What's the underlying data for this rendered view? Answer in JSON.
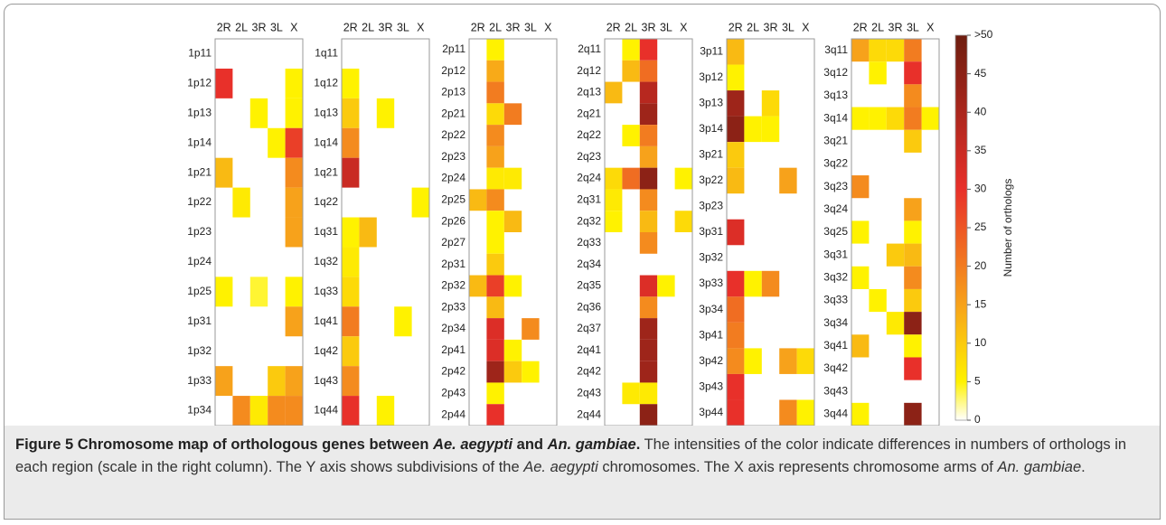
{
  "chart_data": [
    {
      "type": "heatmap",
      "columns": [
        "2R",
        "2L",
        "3R",
        "3L",
        "X"
      ],
      "rows": [
        "1p11",
        "1p12",
        "1p13",
        "1p14",
        "1p21",
        "1p22",
        "1p23",
        "1p24",
        "1p25",
        "1p31",
        "1p32",
        "1p33",
        "1p34"
      ],
      "values": [
        [
          null,
          null,
          null,
          null,
          null
        ],
        [
          30,
          null,
          null,
          null,
          5
        ],
        [
          null,
          null,
          5,
          null,
          5
        ],
        [
          null,
          null,
          null,
          5,
          28
        ],
        [
          12,
          null,
          null,
          null,
          18
        ],
        [
          null,
          6,
          null,
          null,
          15
        ],
        [
          null,
          null,
          null,
          null,
          15
        ],
        [
          null,
          null,
          null,
          null,
          null
        ],
        [
          5,
          null,
          4,
          null,
          5
        ],
        [
          null,
          null,
          null,
          null,
          15
        ],
        [
          null,
          null,
          null,
          null,
          null
        ],
        [
          15,
          null,
          null,
          10,
          15
        ],
        [
          null,
          18,
          6,
          18,
          18
        ]
      ]
    },
    {
      "type": "heatmap",
      "columns": [
        "2R",
        "2L",
        "3R",
        "3L",
        "X"
      ],
      "rows": [
        "1q11",
        "1q12",
        "1q13",
        "1q14",
        "1q21",
        "1q22",
        "1q31",
        "1q32",
        "1q33",
        "1q41",
        "1q42",
        "1q43",
        "1q44"
      ],
      "values": [
        [
          null,
          null,
          null,
          null,
          null
        ],
        [
          5,
          null,
          null,
          null,
          null
        ],
        [
          10,
          null,
          5,
          null,
          null
        ],
        [
          18,
          null,
          null,
          null,
          null
        ],
        [
          35,
          null,
          null,
          null,
          null
        ],
        [
          null,
          null,
          null,
          null,
          5
        ],
        [
          5,
          12,
          null,
          null,
          null
        ],
        [
          6,
          null,
          null,
          null,
          null
        ],
        [
          8,
          null,
          null,
          null,
          null
        ],
        [
          20,
          null,
          null,
          5,
          null
        ],
        [
          10,
          null,
          null,
          null,
          null
        ],
        [
          18,
          null,
          null,
          null,
          null
        ],
        [
          30,
          null,
          5,
          null,
          null
        ]
      ]
    },
    {
      "type": "heatmap",
      "columns": [
        "2R",
        "2L",
        "3R",
        "3L",
        "X"
      ],
      "rows": [
        "2p11",
        "2p12",
        "2p13",
        "2p21",
        "2p22",
        "2p23",
        "2p24",
        "2p25",
        "2p26",
        "2p27",
        "2p31",
        "2p32",
        "2p33",
        "2p34",
        "2p41",
        "2p42",
        "2p43",
        "2p44"
      ],
      "values": [
        [
          null,
          5,
          null,
          null,
          null
        ],
        [
          null,
          14,
          null,
          null,
          null
        ],
        [
          null,
          20,
          null,
          null,
          null
        ],
        [
          null,
          8,
          20,
          null,
          null
        ],
        [
          null,
          18,
          null,
          null,
          null
        ],
        [
          null,
          15,
          null,
          null,
          null
        ],
        [
          null,
          6,
          6,
          null,
          null
        ],
        [
          12,
          18,
          null,
          null,
          null
        ],
        [
          null,
          5,
          12,
          null,
          null
        ],
        [
          null,
          5,
          null,
          null,
          null
        ],
        [
          null,
          10,
          null,
          null,
          null
        ],
        [
          12,
          28,
          5,
          null,
          null
        ],
        [
          null,
          12,
          null,
          null,
          null
        ],
        [
          null,
          32,
          null,
          18,
          null
        ],
        [
          null,
          32,
          5,
          null,
          null
        ],
        [
          null,
          42,
          10,
          5,
          null
        ],
        [
          null,
          5,
          null,
          null,
          null
        ],
        [
          null,
          30,
          null,
          null,
          null
        ]
      ]
    },
    {
      "type": "heatmap",
      "columns": [
        "2R",
        "2L",
        "3R",
        "3L",
        "X"
      ],
      "rows": [
        "2q11",
        "2q12",
        "2q13",
        "2q21",
        "2q22",
        "2q23",
        "2q24",
        "2q31",
        "2q32",
        "2q33",
        "2q34",
        "2q35",
        "2q36",
        "2q37",
        "2q41",
        "2q42",
        "2q43",
        "2q44"
      ],
      "values": [
        [
          null,
          5,
          30,
          null,
          null
        ],
        [
          null,
          12,
          22,
          null,
          null
        ],
        [
          12,
          null,
          38,
          null,
          null
        ],
        [
          null,
          null,
          42,
          null,
          null
        ],
        [
          null,
          5,
          20,
          null,
          null
        ],
        [
          null,
          null,
          15,
          null,
          null
        ],
        [
          8,
          22,
          45,
          null,
          5
        ],
        [
          6,
          null,
          18,
          null,
          null
        ],
        [
          5,
          null,
          12,
          null,
          8
        ],
        [
          null,
          null,
          18,
          null,
          null
        ],
        [
          null,
          null,
          null,
          null,
          null
        ],
        [
          null,
          null,
          32,
          5,
          null
        ],
        [
          null,
          null,
          18,
          null,
          null
        ],
        [
          null,
          null,
          42,
          null,
          null
        ],
        [
          null,
          null,
          42,
          null,
          null
        ],
        [
          null,
          null,
          42,
          null,
          null
        ],
        [
          null,
          6,
          6,
          null,
          null
        ],
        [
          null,
          null,
          45,
          null,
          null
        ]
      ]
    },
    {
      "type": "heatmap",
      "columns": [
        "2R",
        "2L",
        "3R",
        "3L",
        "X"
      ],
      "rows": [
        "3p11",
        "3p12",
        "3p13",
        "3p14",
        "3p21",
        "3p22",
        "3p23",
        "3p31",
        "3p32",
        "3p33",
        "3p34",
        "3p41",
        "3p42",
        "3p43",
        "3p44"
      ],
      "values": [
        [
          12,
          null,
          null,
          null,
          null
        ],
        [
          5,
          null,
          null,
          null,
          null
        ],
        [
          42,
          null,
          8,
          null,
          null
        ],
        [
          45,
          5,
          5,
          null,
          null
        ],
        [
          10,
          null,
          null,
          null,
          null
        ],
        [
          12,
          null,
          null,
          15,
          null
        ],
        [
          null,
          null,
          null,
          null,
          null
        ],
        [
          32,
          null,
          null,
          null,
          null
        ],
        [
          null,
          null,
          null,
          null,
          null
        ],
        [
          30,
          5,
          18,
          null,
          null
        ],
        [
          22,
          null,
          null,
          null,
          null
        ],
        [
          20,
          null,
          null,
          null,
          null
        ],
        [
          18,
          5,
          null,
          15,
          8
        ],
        [
          30,
          null,
          null,
          null,
          null
        ],
        [
          30,
          null,
          null,
          18,
          5
        ]
      ]
    },
    {
      "type": "heatmap",
      "columns": [
        "2R",
        "2L",
        "3R",
        "3L",
        "X"
      ],
      "rows": [
        "3q11",
        "3q12",
        "3q13",
        "3q14",
        "3q21",
        "3q22",
        "3q23",
        "3q24",
        "3q25",
        "3q31",
        "3q32",
        "3q33",
        "3q34",
        "3q41",
        "3q42",
        "3q43",
        "3q44"
      ],
      "values": [
        [
          15,
          8,
          8,
          20,
          null
        ],
        [
          null,
          5,
          null,
          30,
          null
        ],
        [
          null,
          null,
          null,
          18,
          null
        ],
        [
          5,
          5,
          8,
          20,
          5
        ],
        [
          null,
          null,
          null,
          10,
          null
        ],
        [
          null,
          null,
          null,
          null,
          null
        ],
        [
          18,
          null,
          null,
          null,
          null
        ],
        [
          null,
          null,
          null,
          15,
          null
        ],
        [
          5,
          null,
          null,
          5,
          null
        ],
        [
          null,
          null,
          10,
          12,
          null
        ],
        [
          5,
          null,
          null,
          18,
          null
        ],
        [
          null,
          5,
          null,
          10,
          null
        ],
        [
          null,
          null,
          6,
          45,
          null
        ],
        [
          12,
          null,
          null,
          5,
          null
        ],
        [
          null,
          null,
          null,
          30,
          null
        ],
        [
          null,
          null,
          null,
          null,
          null
        ],
        [
          5,
          null,
          null,
          45,
          null
        ]
      ]
    }
  ],
  "colorbar": {
    "label": "Number of orthologs",
    "lim": [
      0,
      50
    ],
    "ticks": [
      0,
      5,
      10,
      15,
      20,
      25,
      30,
      35,
      40,
      45,
      {
        "value": 50,
        "label": ">50"
      }
    ],
    "colorscale": [
      [
        0,
        "#ffffff"
      ],
      [
        0.1,
        "#fff200"
      ],
      [
        0.3,
        "#f7a21b"
      ],
      [
        0.6,
        "#e8302a"
      ],
      [
        1,
        "#6d1d0f"
      ]
    ]
  },
  "caption": [
    {
      "text": "Figure 5 Chromosome map of orthologous genes between ",
      "style": "b"
    },
    {
      "text": "Ae. aegypti",
      "style": "bi"
    },
    {
      "text": " and ",
      "style": "b"
    },
    {
      "text": "An. gambiae",
      "style": "bi"
    },
    {
      "text": ".",
      "style": "b"
    },
    {
      "text": " The intensities of the color indicate differences in numbers of orthologs in each region (scale in the right column). The Y axis shows subdivisions of the ",
      "style": "n"
    },
    {
      "text": "Ae. aegypti",
      "style": "i"
    },
    {
      "text": " chromosomes. The X axis represents chromosome arms of ",
      "style": "n"
    },
    {
      "text": "An. gambiae",
      "style": "i"
    },
    {
      "text": ".",
      "style": "n"
    }
  ]
}
